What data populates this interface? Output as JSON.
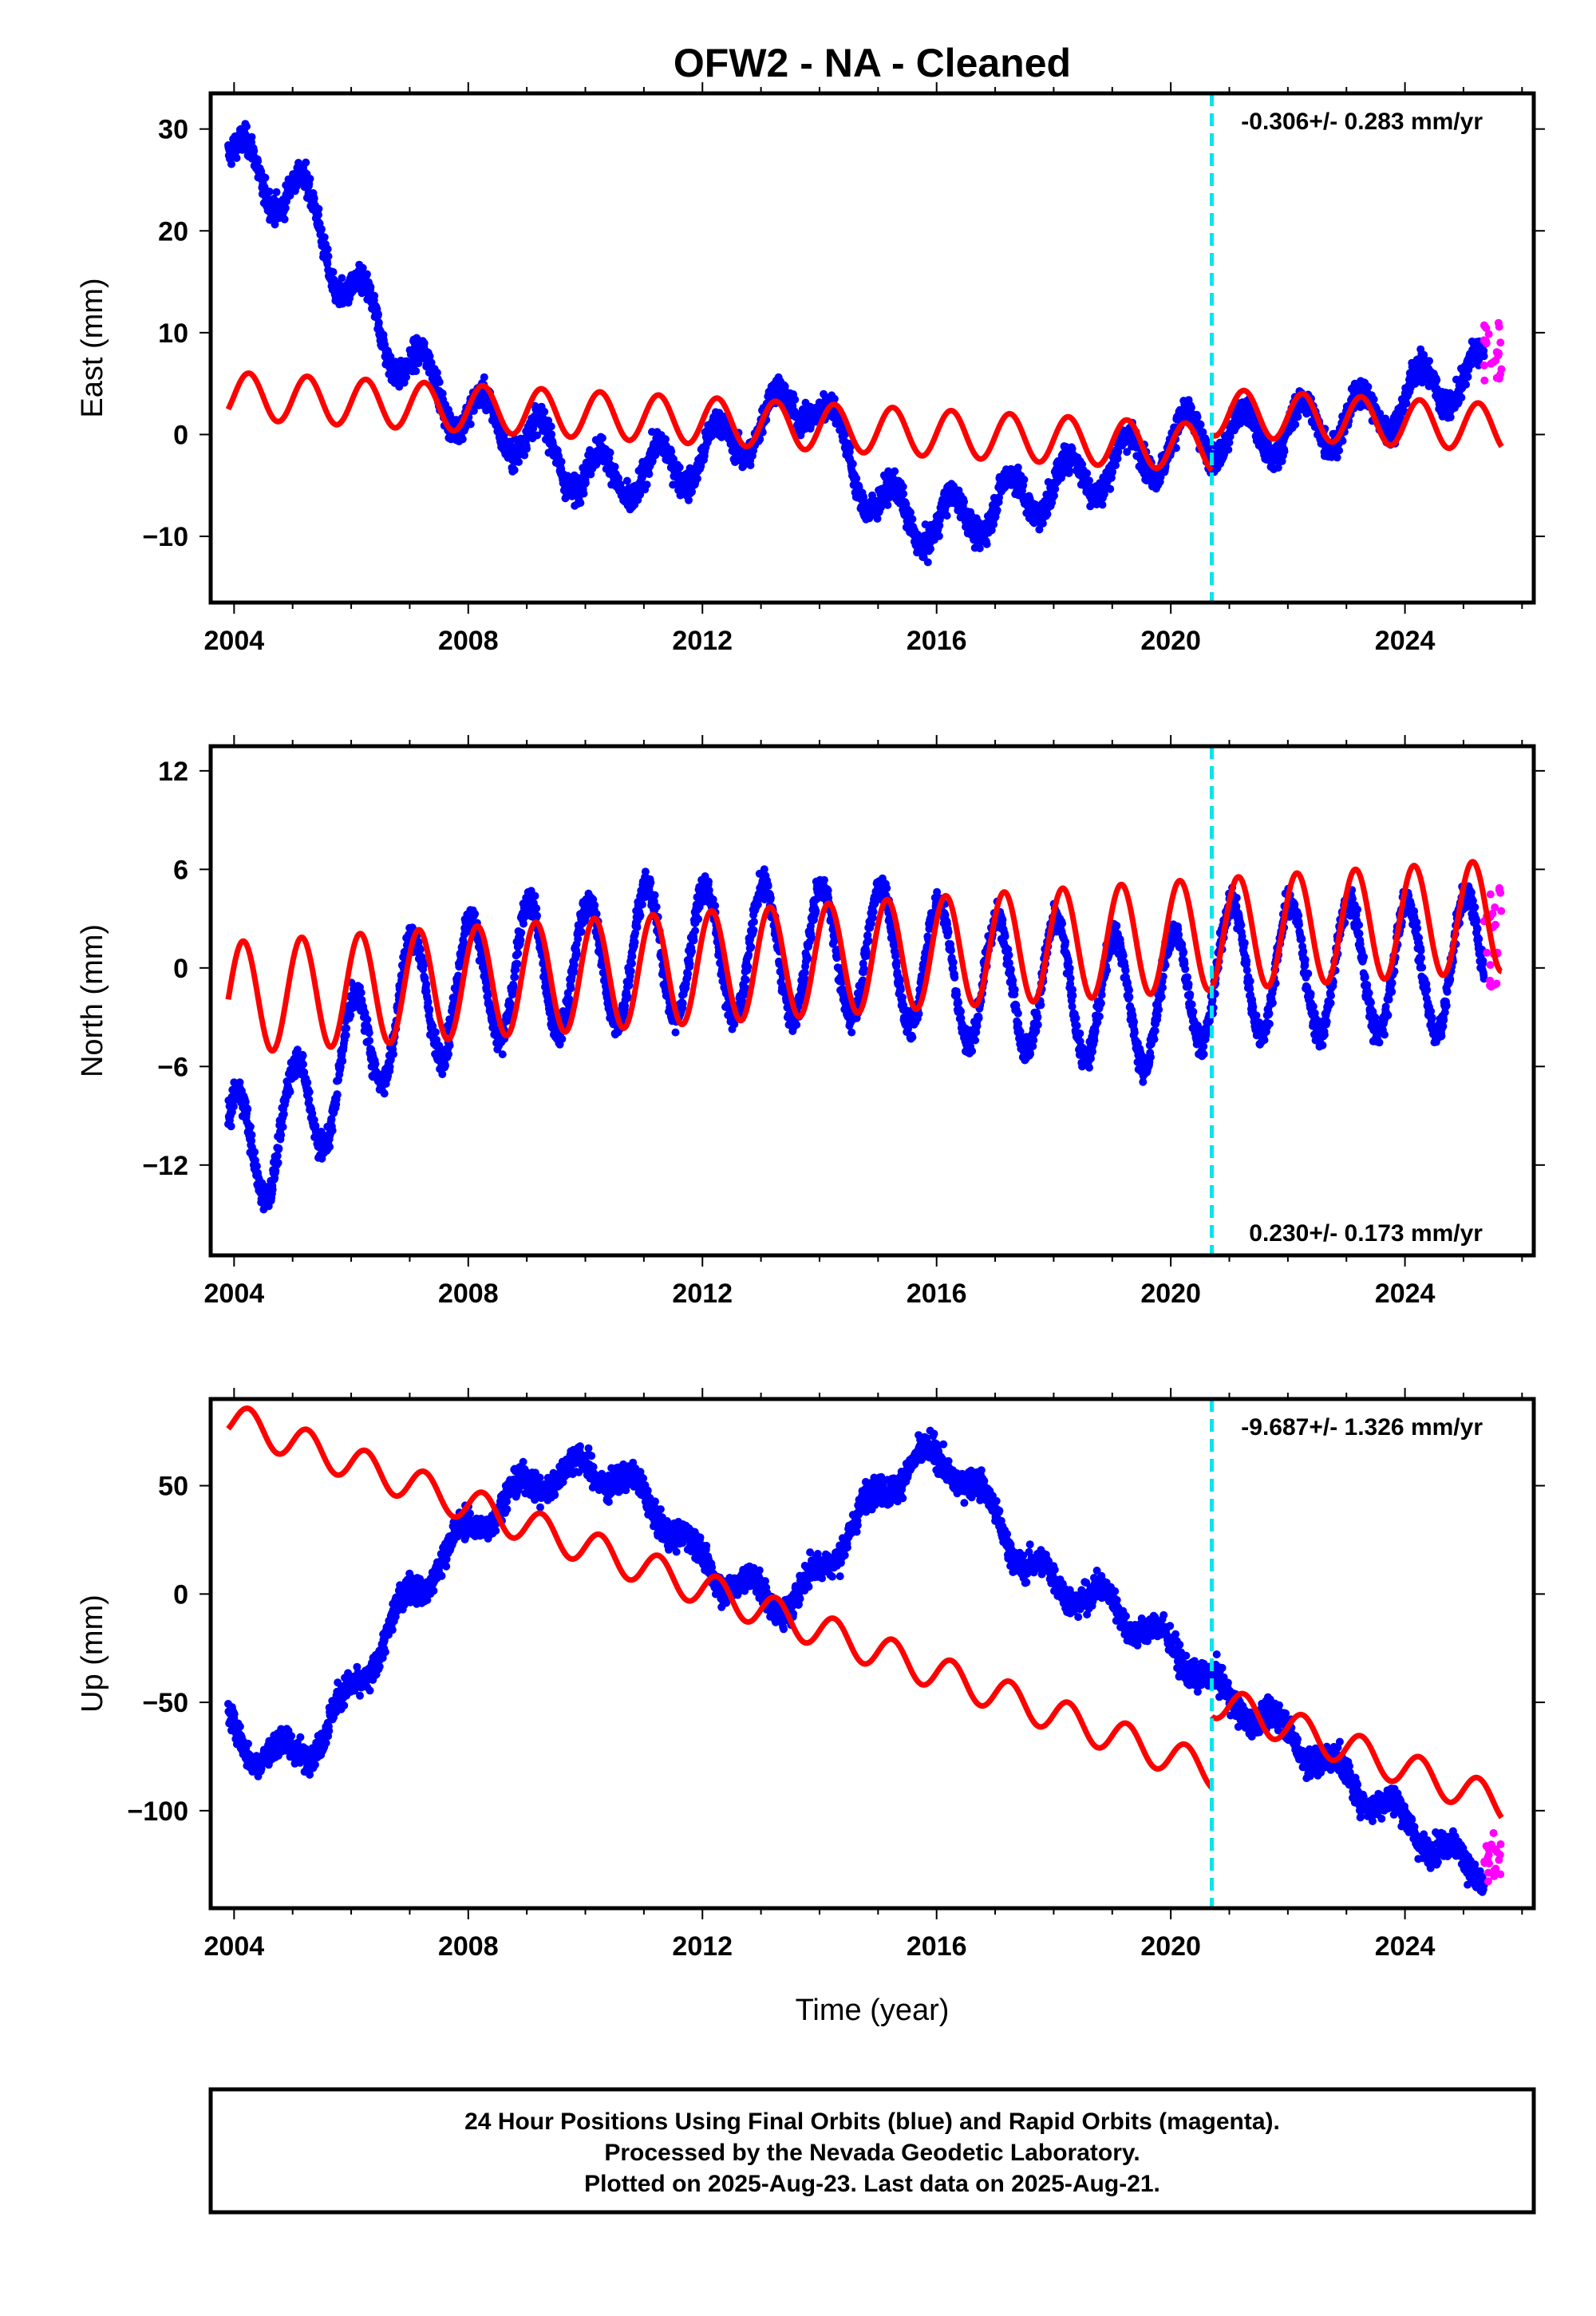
{
  "title": "OFW2  - NA - Cleaned",
  "footer": {
    "lines": [
      "24 Hour Positions Using Final Orbits (blue) and Rapid Orbits (magenta).",
      "Processed by the Nevada Geodetic Laboratory.",
      "Plotted on 2025-Aug-23. Last data on 2025-Aug-21."
    ]
  },
  "colors": {
    "final_orbits": "#0000ff",
    "rapid_orbits": "#ff00ff",
    "model": "#ff0000",
    "equipment_change": "#00e5ee"
  },
  "chart_data": [
    {
      "type": "scatter",
      "ylabel": "East (mm)",
      "xlabel": "",
      "xlim": [
        2003.6,
        2026.2
      ],
      "ylim": [
        -16.5,
        33.5
      ],
      "xticks": [
        2004,
        2008,
        2012,
        2016,
        2020,
        2024
      ],
      "yticks": [
        -10,
        0,
        10,
        20,
        30
      ],
      "ytick_labels": [
        "−10",
        "0",
        "10",
        "20",
        "30"
      ],
      "xtick_labels": [
        "2004",
        "2008",
        "2012",
        "2016",
        "2020",
        "2024"
      ],
      "rate": "-0.306+/- 0.283 mm/yr",
      "rate_position": "top-right",
      "equipment_change_year": 2020.7,
      "observed_trend": [
        [
          2003.9,
          29
        ],
        [
          2004.5,
          24
        ],
        [
          2005.0,
          25
        ],
        [
          2005.7,
          17
        ],
        [
          2006.5,
          10
        ],
        [
          2007.0,
          7
        ],
        [
          2007.5,
          4
        ],
        [
          2008.0,
          2
        ],
        [
          2009.0,
          0
        ],
        [
          2010.0,
          -4
        ],
        [
          2011.0,
          -4
        ],
        [
          2012.0,
          -2
        ],
        [
          2013.0,
          1
        ],
        [
          2013.8,
          4
        ],
        [
          2014.5,
          -2
        ],
        [
          2015.0,
          -7
        ],
        [
          2016.0,
          -9
        ],
        [
          2016.5,
          -8
        ],
        [
          2017.5,
          -6
        ],
        [
          2018.5,
          -4
        ],
        [
          2019.5,
          -2
        ],
        [
          2020.5,
          0
        ],
        [
          2021.5,
          0
        ],
        [
          2022.5,
          1
        ],
        [
          2023.5,
          2
        ],
        [
          2024.5,
          5
        ],
        [
          2025.5,
          6
        ]
      ],
      "observed_seasonal_amplitude": 2.5,
      "rapid_segment": {
        "x": [
          2025.35,
          2025.65
        ],
        "y": [
          5,
          12
        ]
      },
      "model_segments": [
        {
          "x": [
            2003.9,
            2020.7
          ],
          "intercept_at_2004": 3.8,
          "slope": -0.306,
          "annual_amplitude": 2.3,
          "annual_phase": 0.0
        },
        {
          "x": [
            2020.7,
            2025.65
          ],
          "intercept_at_2004": 7.3,
          "slope": -0.306,
          "annual_amplitude": 2.3,
          "annual_phase": 0.0
        }
      ]
    },
    {
      "type": "scatter",
      "ylabel": "North (mm)",
      "xlabel": "",
      "xlim": [
        2003.6,
        2026.2
      ],
      "ylim": [
        -17.5,
        13.5
      ],
      "xticks": [
        2004,
        2008,
        2012,
        2016,
        2020,
        2024
      ],
      "yticks": [
        -12,
        -6,
        0,
        6,
        12
      ],
      "ytick_labels": [
        "−12",
        "−6",
        "0",
        "6",
        "12"
      ],
      "xtick_labels": [
        "2004",
        "2008",
        "2012",
        "2016",
        "2020",
        "2024"
      ],
      "rate": "0.230+/- 0.173 mm/yr",
      "rate_position": "bottom-right",
      "equipment_change_year": 2020.7,
      "observed_trend": [
        [
          2003.9,
          -12
        ],
        [
          2004.5,
          -10
        ],
        [
          2005.0,
          -10
        ],
        [
          2005.5,
          -7
        ],
        [
          2006.0,
          -6
        ],
        [
          2006.5,
          -3
        ],
        [
          2007.0,
          -2
        ],
        [
          2008.0,
          -1
        ],
        [
          2009.0,
          0
        ],
        [
          2010.0,
          0
        ],
        [
          2011.0,
          1
        ],
        [
          2012.0,
          1
        ],
        [
          2013.0,
          1
        ],
        [
          2014.0,
          1
        ],
        [
          2015.0,
          1
        ],
        [
          2016.0,
          0
        ],
        [
          2017.0,
          -1
        ],
        [
          2018.0,
          -1
        ],
        [
          2019.0,
          -2
        ],
        [
          2020.0,
          -2
        ],
        [
          2020.7,
          0
        ],
        [
          2021.5,
          0
        ],
        [
          2022.5,
          0
        ],
        [
          2023.5,
          0
        ],
        [
          2024.5,
          0
        ],
        [
          2025.5,
          1
        ]
      ],
      "observed_seasonal_amplitude": 4.0,
      "rapid_segment": {
        "x": [
          2025.35,
          2025.65
        ],
        "y": [
          -2,
          5
        ]
      },
      "model_segments": [
        {
          "x": [
            2003.9,
            2025.65
          ],
          "intercept_at_2004": -1.8,
          "slope": 0.23,
          "annual_amplitude": 3.4,
          "annual_phase": 0.6
        }
      ]
    },
    {
      "type": "scatter",
      "ylabel": "Up (mm)",
      "xlabel": "Time (year)",
      "xlim": [
        2003.6,
        2026.2
      ],
      "ylim": [
        -145,
        90
      ],
      "xticks": [
        2004,
        2008,
        2012,
        2016,
        2020,
        2024
      ],
      "yticks": [
        -100,
        -50,
        0,
        50
      ],
      "ytick_labels": [
        "−100",
        "−50",
        "0",
        "50"
      ],
      "xtick_labels": [
        "2004",
        "2008",
        "2012",
        "2016",
        "2020",
        "2024"
      ],
      "rate": "-9.687+/- 1.326 mm/yr",
      "rate_position": "top-right",
      "equipment_change_year": 2020.7,
      "observed_trend": [
        [
          2003.9,
          -60
        ],
        [
          2004.3,
          -72
        ],
        [
          2005.0,
          -75
        ],
        [
          2005.5,
          -65
        ],
        [
          2006.0,
          -45
        ],
        [
          2006.5,
          -25
        ],
        [
          2007.0,
          0
        ],
        [
          2007.5,
          15
        ],
        [
          2008.0,
          30
        ],
        [
          2008.5,
          40
        ],
        [
          2009.0,
          50
        ],
        [
          2009.5,
          55
        ],
        [
          2010.0,
          58
        ],
        [
          2010.5,
          55
        ],
        [
          2011.0,
          45
        ],
        [
          2011.5,
          30
        ],
        [
          2012.0,
          15
        ],
        [
          2012.5,
          5
        ],
        [
          2013.0,
          0
        ],
        [
          2013.5,
          -5
        ],
        [
          2014.0,
          10
        ],
        [
          2014.5,
          30
        ],
        [
          2015.0,
          45
        ],
        [
          2015.5,
          60
        ],
        [
          2016.0,
          62
        ],
        [
          2016.5,
          55
        ],
        [
          2017.0,
          35
        ],
        [
          2017.5,
          15
        ],
        [
          2018.0,
          5
        ],
        [
          2018.5,
          0
        ],
        [
          2019.0,
          -5
        ],
        [
          2019.5,
          -15
        ],
        [
          2020.0,
          -25
        ],
        [
          2020.5,
          -35
        ],
        [
          2021.0,
          -50
        ],
        [
          2021.5,
          -55
        ],
        [
          2022.0,
          -65
        ],
        [
          2022.5,
          -75
        ],
        [
          2023.0,
          -85
        ],
        [
          2023.5,
          -95
        ],
        [
          2024.0,
          -105
        ],
        [
          2024.5,
          -115
        ],
        [
          2025.0,
          -125
        ],
        [
          2025.5,
          -132
        ]
      ],
      "observed_seasonal_amplitude": 6.0,
      "rapid_segment": {
        "x": [
          2025.35,
          2025.65
        ],
        "y": [
          -135,
          -110
        ]
      },
      "model_segments": [
        {
          "x": [
            2003.9,
            2020.7
          ],
          "intercept_at_2004": 80,
          "slope": -9.687,
          "annual_amplitude": 8.0,
          "annual_phase": 0.0
        },
        {
          "x": [
            2020.7,
            2025.65
          ],
          "intercept_at_2004": 113,
          "slope": -9.687,
          "annual_amplitude": 8.0,
          "annual_phase": 0.0
        }
      ]
    }
  ]
}
